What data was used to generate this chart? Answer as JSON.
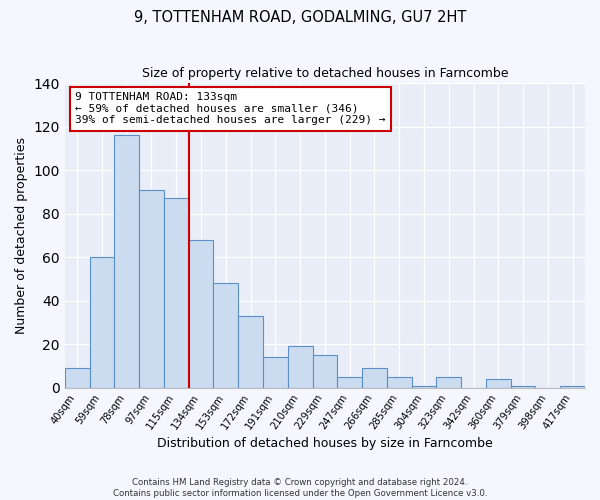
{
  "title": "9, TOTTENHAM ROAD, GODALMING, GU7 2HT",
  "subtitle": "Size of property relative to detached houses in Farncombe",
  "xlabel": "Distribution of detached houses by size in Farncombe",
  "ylabel": "Number of detached properties",
  "bar_labels": [
    "40sqm",
    "59sqm",
    "78sqm",
    "97sqm",
    "115sqm",
    "134sqm",
    "153sqm",
    "172sqm",
    "191sqm",
    "210sqm",
    "229sqm",
    "247sqm",
    "266sqm",
    "285sqm",
    "304sqm",
    "323sqm",
    "342sqm",
    "360sqm",
    "379sqm",
    "398sqm",
    "417sqm"
  ],
  "bar_values": [
    9,
    60,
    116,
    91,
    87,
    68,
    48,
    33,
    14,
    19,
    15,
    5,
    9,
    5,
    1,
    5,
    0,
    4,
    1,
    0,
    1
  ],
  "bar_color": "#ccdcf0",
  "bar_edge_color": "#5a8fc8",
  "vline_x_index": 5,
  "vline_color": "#cc0000",
  "annotation_text": "9 TOTTENHAM ROAD: 133sqm\n← 59% of detached houses are smaller (346)\n39% of semi-detached houses are larger (229) →",
  "annotation_box_color": "#ffffff",
  "annotation_box_edge_color": "#cc0000",
  "ylim": [
    0,
    140
  ],
  "yticks": [
    0,
    20,
    40,
    60,
    80,
    100,
    120,
    140
  ],
  "footnote1": "Contains HM Land Registry data © Crown copyright and database right 2024.",
  "footnote2": "Contains public sector information licensed under the Open Government Licence v3.0.",
  "figure_background_color": "#f5f7ff",
  "plot_background_color": "#e8edf8"
}
